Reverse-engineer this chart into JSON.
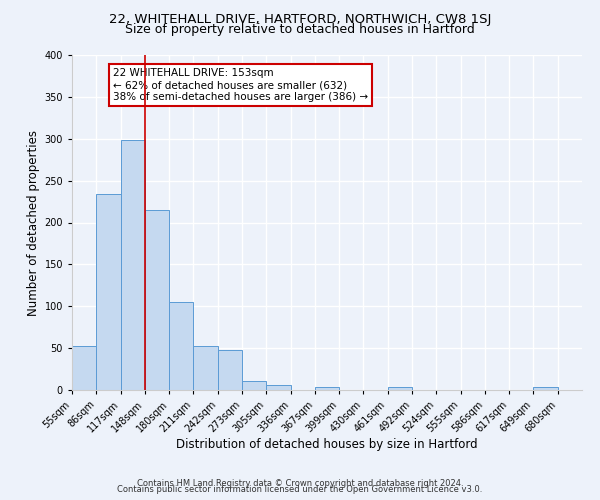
{
  "title": "22, WHITEHALL DRIVE, HARTFORD, NORTHWICH, CW8 1SJ",
  "subtitle": "Size of property relative to detached houses in Hartford",
  "xlabel": "Distribution of detached houses by size in Hartford",
  "ylabel": "Number of detached properties",
  "bin_labels": [
    "55sqm",
    "86sqm",
    "117sqm",
    "148sqm",
    "180sqm",
    "211sqm",
    "242sqm",
    "273sqm",
    "305sqm",
    "336sqm",
    "367sqm",
    "399sqm",
    "430sqm",
    "461sqm",
    "492sqm",
    "524sqm",
    "555sqm",
    "586sqm",
    "617sqm",
    "649sqm",
    "680sqm"
  ],
  "bar_heights": [
    52,
    234,
    298,
    215,
    105,
    52,
    48,
    11,
    6,
    0,
    4,
    0,
    0,
    4,
    0,
    0,
    0,
    0,
    0,
    4,
    0
  ],
  "bar_color": "#c5d9f0",
  "bar_edge_color": "#5b9bd5",
  "vline_x": 3,
  "vline_color": "#cc0000",
  "annotation_text": "22 WHITEHALL DRIVE: 153sqm\n← 62% of detached houses are smaller (632)\n38% of semi-detached houses are larger (386) →",
  "annotation_box_color": "#ffffff",
  "annotation_box_edge": "#cc0000",
  "ylim": [
    0,
    400
  ],
  "yticks": [
    0,
    50,
    100,
    150,
    200,
    250,
    300,
    350,
    400
  ],
  "footer1": "Contains HM Land Registry data © Crown copyright and database right 2024.",
  "footer2": "Contains public sector information licensed under the Open Government Licence v3.0.",
  "background_color": "#edf2fa",
  "grid_color": "#ffffff",
  "title_fontsize": 9.5,
  "subtitle_fontsize": 9,
  "axis_label_fontsize": 8.5,
  "tick_fontsize": 7,
  "annot_fontsize": 7.5,
  "footer_fontsize": 6
}
